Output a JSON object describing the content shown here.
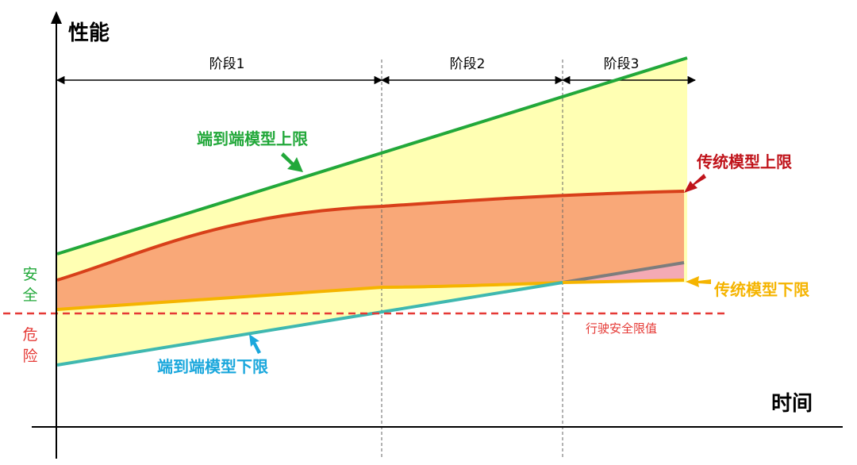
{
  "axes": {
    "y_label": "性能",
    "x_label": "时间"
  },
  "phases": [
    "阶段1",
    "阶段2",
    "阶段3"
  ],
  "labels": {
    "e2e_upper": "端到端模型上限",
    "traditional_upper": "传统模型上限",
    "traditional_lower": "传统模型下限",
    "e2e_lower": "端到端模型下限",
    "safety_threshold": "行驶安全限值",
    "safe": [
      "安",
      "全"
    ],
    "danger": [
      "危",
      "险"
    ]
  },
  "colors": {
    "e2e_upper": "#22a83a",
    "traditional_upper": "#c0141b",
    "traditional_lower": "#f5b400",
    "e2e_lower": "#1aa7dc",
    "safe": "#22a83a",
    "danger": "#e53935",
    "threshold_line": "#e53935",
    "band_yellow": "#ffffb3",
    "band_orange": "#f9a878",
    "band_pink": "#f4aab4"
  }
}
